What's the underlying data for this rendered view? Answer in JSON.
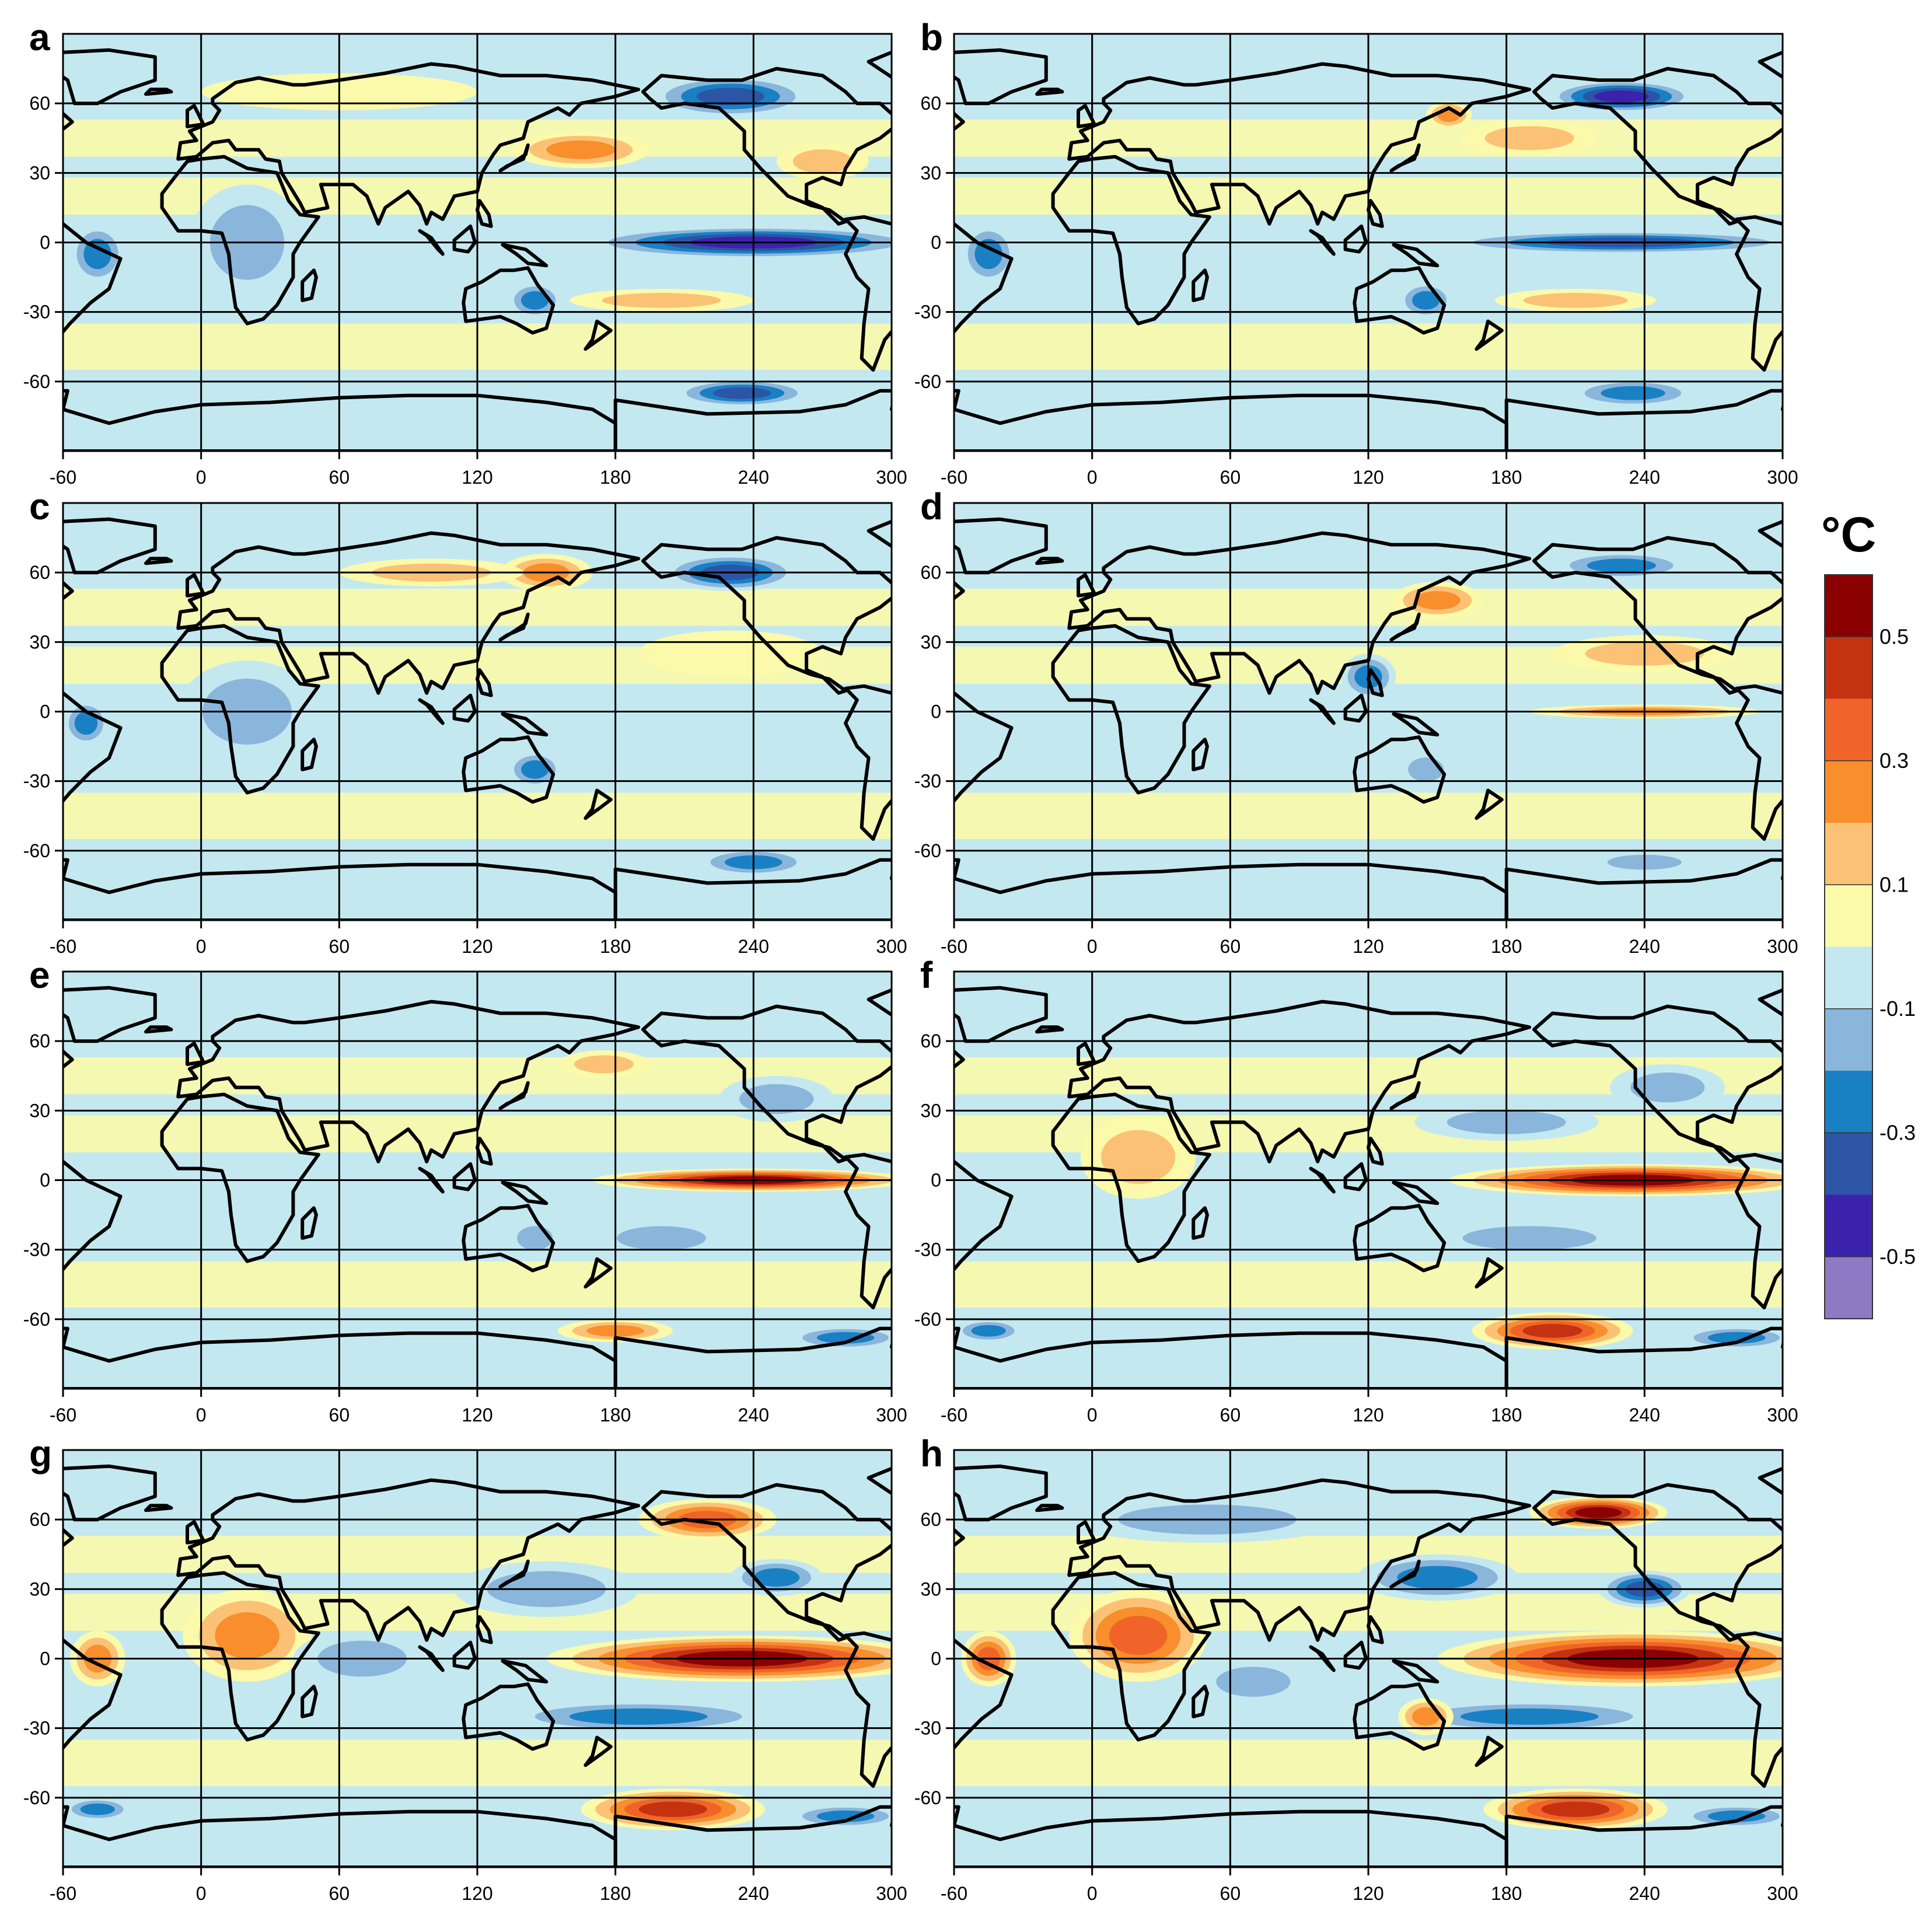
{
  "figure": {
    "panels": [
      {
        "label": "a"
      },
      {
        "label": "b"
      },
      {
        "label": "c"
      },
      {
        "label": "d"
      },
      {
        "label": "e"
      },
      {
        "label": "f"
      },
      {
        "label": "g"
      },
      {
        "label": "h"
      }
    ]
  },
  "chart_data": {
    "type": "heatmap",
    "x_ticks": [
      "-60",
      "0",
      "60",
      "120",
      "180",
      "240",
      "300"
    ],
    "y_ticks": [
      "60",
      "30",
      "0",
      "-30",
      "-60"
    ],
    "xlim": [
      -60,
      300
    ],
    "ylim": [
      -90,
      90
    ],
    "grid": true,
    "colorbar": {
      "title": "°C",
      "tick_labels": [
        "0.5",
        "0.3",
        "0.1",
        "-0.1",
        "-0.3",
        "-0.5"
      ],
      "colors": [
        "#8b0000",
        "#c43210",
        "#f0642a",
        "#f88e2c",
        "#fbc275",
        "#fafaaa",
        "#c4e8f0",
        "#8ab6dc",
        "#1a80c4",
        "#2c55a5",
        "#3b22ad",
        "#8e7ac4"
      ]
    },
    "panel_features": [
      {
        "panel": "a",
        "features": [
          {
            "lon": 240,
            "lat": 0,
            "rlon": 75,
            "rlat": 7,
            "v": -0.45
          },
          {
            "lon": 235,
            "lat": -65,
            "rlon": 30,
            "rlat": 6,
            "v": -0.4
          },
          {
            "lon": 230,
            "lat": 63,
            "rlon": 35,
            "rlat": 9,
            "v": -0.35
          },
          {
            "lon": -45,
            "lat": -5,
            "rlon": 12,
            "rlat": 13,
            "v": -0.25
          },
          {
            "lon": 20,
            "lat": 0,
            "rlon": 25,
            "rlat": 25,
            "v": -0.12
          },
          {
            "lon": 145,
            "lat": -25,
            "rlon": 12,
            "rlat": 8,
            "v": -0.25
          },
          {
            "lon": 165,
            "lat": 40,
            "rlon": 30,
            "rlat": 8,
            "v": 0.2
          },
          {
            "lon": 200,
            "lat": -25,
            "rlon": 40,
            "rlat": 5,
            "v": 0.15
          },
          {
            "lon": 270,
            "lat": 35,
            "rlon": 20,
            "rlat": 8,
            "v": 0.15
          },
          {
            "lon": 60,
            "lat": 65,
            "rlon": 60,
            "rlat": 8,
            "v": 0.08
          }
        ]
      },
      {
        "panel": "b",
        "features": [
          {
            "lon": 230,
            "lat": 0,
            "rlon": 80,
            "rlat": 5,
            "v": -0.32
          },
          {
            "lon": 230,
            "lat": 63,
            "rlon": 32,
            "rlat": 7,
            "v": -0.45
          },
          {
            "lon": 235,
            "lat": -65,
            "rlon": 28,
            "rlat": 6,
            "v": -0.3
          },
          {
            "lon": -45,
            "lat": -5,
            "rlon": 12,
            "rlat": 13,
            "v": -0.25
          },
          {
            "lon": 145,
            "lat": -25,
            "rlon": 12,
            "rlat": 8,
            "v": -0.25
          },
          {
            "lon": 155,
            "lat": 55,
            "rlon": 10,
            "rlat": 6,
            "v": 0.2
          },
          {
            "lon": 190,
            "lat": 45,
            "rlon": 30,
            "rlat": 8,
            "v": 0.15
          },
          {
            "lon": 210,
            "lat": -25,
            "rlon": 35,
            "rlat": 5,
            "v": 0.1
          }
        ]
      },
      {
        "panel": "c",
        "features": [
          {
            "lon": 230,
            "lat": 60,
            "rlon": 30,
            "rlat": 8,
            "v": -0.4
          },
          {
            "lon": 150,
            "lat": 60,
            "rlon": 20,
            "rlat": 8,
            "v": 0.25
          },
          {
            "lon": 100,
            "lat": 60,
            "rlon": 40,
            "rlat": 6,
            "v": 0.1
          },
          {
            "lon": 240,
            "lat": -65,
            "rlon": 25,
            "rlat": 6,
            "v": -0.25
          },
          {
            "lon": 145,
            "lat": -25,
            "rlon": 12,
            "rlat": 8,
            "v": -0.25
          },
          {
            "lon": 20,
            "lat": 0,
            "rlon": 30,
            "rlat": 22,
            "v": -0.12
          },
          {
            "lon": -50,
            "lat": -5,
            "rlon": 10,
            "rlat": 10,
            "v": -0.25
          },
          {
            "lon": 230,
            "lat": 25,
            "rlon": 40,
            "rlat": 10,
            "v": 0.08
          }
        ]
      },
      {
        "panel": "d",
        "features": [
          {
            "lon": 240,
            "lat": 0,
            "rlon": 50,
            "rlat": 3,
            "v": 0.25
          },
          {
            "lon": 230,
            "lat": 63,
            "rlon": 30,
            "rlat": 6,
            "v": -0.3
          },
          {
            "lon": 150,
            "lat": 48,
            "rlon": 20,
            "rlat": 8,
            "v": 0.2
          },
          {
            "lon": 120,
            "lat": 15,
            "rlon": 12,
            "rlat": 10,
            "v": -0.25
          },
          {
            "lon": 145,
            "lat": -25,
            "rlon": 12,
            "rlat": 8,
            "v": -0.2
          },
          {
            "lon": 240,
            "lat": -65,
            "rlon": 25,
            "rlat": 5,
            "v": -0.2
          },
          {
            "lon": 240,
            "lat": 25,
            "rlon": 40,
            "rlat": 8,
            "v": 0.1
          }
        ]
      },
      {
        "panel": "e",
        "features": [
          {
            "lon": 240,
            "lat": 0,
            "rlon": 70,
            "rlat": 5,
            "v": 0.5
          },
          {
            "lon": 280,
            "lat": -68,
            "rlon": 25,
            "rlat": 5,
            "v": -0.3
          },
          {
            "lon": 180,
            "lat": -65,
            "rlon": 25,
            "rlat": 5,
            "v": 0.2
          },
          {
            "lon": 145,
            "lat": -25,
            "rlon": 12,
            "rlat": 8,
            "v": -0.15
          },
          {
            "lon": 250,
            "lat": 35,
            "rlon": 25,
            "rlat": 10,
            "v": -0.15
          },
          {
            "lon": 175,
            "lat": 50,
            "rlon": 20,
            "rlat": 6,
            "v": 0.12
          },
          {
            "lon": 200,
            "lat": -25,
            "rlon": 30,
            "rlat": 8,
            "v": -0.12
          }
        ]
      },
      {
        "panel": "f",
        "features": [
          {
            "lon": 235,
            "lat": 0,
            "rlon": 80,
            "rlat": 7,
            "v": 0.6
          },
          {
            "lon": 200,
            "lat": -65,
            "rlon": 35,
            "rlat": 8,
            "v": 0.4
          },
          {
            "lon": -45,
            "lat": -65,
            "rlon": 15,
            "rlat": 5,
            "v": -0.3
          },
          {
            "lon": 280,
            "lat": -68,
            "rlon": 25,
            "rlat": 5,
            "v": -0.3
          },
          {
            "lon": 190,
            "lat": -25,
            "rlon": 45,
            "rlat": 8,
            "v": -0.2
          },
          {
            "lon": 20,
            "lat": 10,
            "rlon": 25,
            "rlat": 18,
            "v": 0.12
          },
          {
            "lon": 250,
            "lat": 40,
            "rlon": 25,
            "rlat": 10,
            "v": -0.15
          },
          {
            "lon": 180,
            "lat": 25,
            "rlon": 40,
            "rlat": 8,
            "v": -0.12
          }
        ]
      },
      {
        "panel": "g",
        "features": [
          {
            "lon": 235,
            "lat": 0,
            "rlon": 85,
            "rlat": 10,
            "v": 0.6
          },
          {
            "lon": 205,
            "lat": -65,
            "rlon": 40,
            "rlat": 9,
            "v": 0.45
          },
          {
            "lon": 220,
            "lat": 60,
            "rlon": 30,
            "rlat": 9,
            "v": 0.35
          },
          {
            "lon": 190,
            "lat": -25,
            "rlon": 60,
            "rlat": 7,
            "v": -0.3
          },
          {
            "lon": 150,
            "lat": 30,
            "rlon": 40,
            "rlat": 12,
            "v": -0.2
          },
          {
            "lon": 250,
            "lat": 35,
            "rlon": 20,
            "rlat": 8,
            "v": -0.3
          },
          {
            "lon": 20,
            "lat": 10,
            "rlon": 28,
            "rlat": 20,
            "v": 0.25
          },
          {
            "lon": -45,
            "lat": 0,
            "rlon": 12,
            "rlat": 12,
            "v": 0.2
          },
          {
            "lon": 280,
            "lat": -68,
            "rlon": 25,
            "rlat": 5,
            "v": -0.3
          },
          {
            "lon": -45,
            "lat": -65,
            "rlon": 15,
            "rlat": 5,
            "v": -0.25
          },
          {
            "lon": 70,
            "lat": 0,
            "rlon": 30,
            "rlat": 12,
            "v": -0.12
          }
        ]
      },
      {
        "panel": "h",
        "features": [
          {
            "lon": 235,
            "lat": 0,
            "rlon": 85,
            "rlat": 12,
            "v": 0.6
          },
          {
            "lon": 210,
            "lat": -65,
            "rlon": 40,
            "rlat": 9,
            "v": 0.45
          },
          {
            "lon": 220,
            "lat": 63,
            "rlon": 30,
            "rlat": 7,
            "v": 0.5
          },
          {
            "lon": 190,
            "lat": -25,
            "rlon": 60,
            "rlat": 7,
            "v": -0.3
          },
          {
            "lon": 150,
            "lat": 35,
            "rlon": 35,
            "rlat": 10,
            "v": -0.25
          },
          {
            "lon": 240,
            "lat": 30,
            "rlon": 20,
            "rlat": 8,
            "v": -0.35
          },
          {
            "lon": 20,
            "lat": 10,
            "rlon": 30,
            "rlat": 20,
            "v": 0.3
          },
          {
            "lon": 145,
            "lat": -25,
            "rlon": 12,
            "rlat": 8,
            "v": 0.25
          },
          {
            "lon": -45,
            "lat": 0,
            "rlon": 12,
            "rlat": 12,
            "v": 0.3
          },
          {
            "lon": 50,
            "lat": 60,
            "rlon": 60,
            "rlat": 10,
            "v": -0.2
          },
          {
            "lon": 280,
            "lat": -68,
            "rlon": 25,
            "rlat": 5,
            "v": -0.3
          },
          {
            "lon": 70,
            "lat": -10,
            "rlon": 25,
            "rlat": 10,
            "v": -0.2
          }
        ]
      }
    ]
  }
}
